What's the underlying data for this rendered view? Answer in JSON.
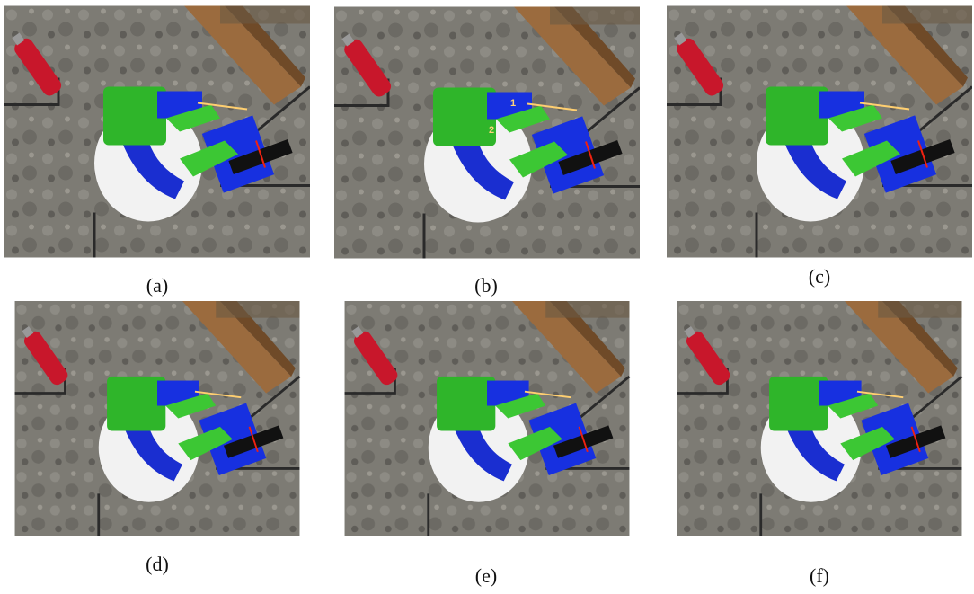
{
  "panels": [
    {
      "caption": "(a)"
    },
    {
      "caption": "(b)",
      "annotations": [
        "1",
        "2"
      ]
    },
    {
      "caption": "(c)"
    },
    {
      "caption": "(d)"
    },
    {
      "caption": "(e)"
    },
    {
      "caption": "(f)"
    }
  ]
}
